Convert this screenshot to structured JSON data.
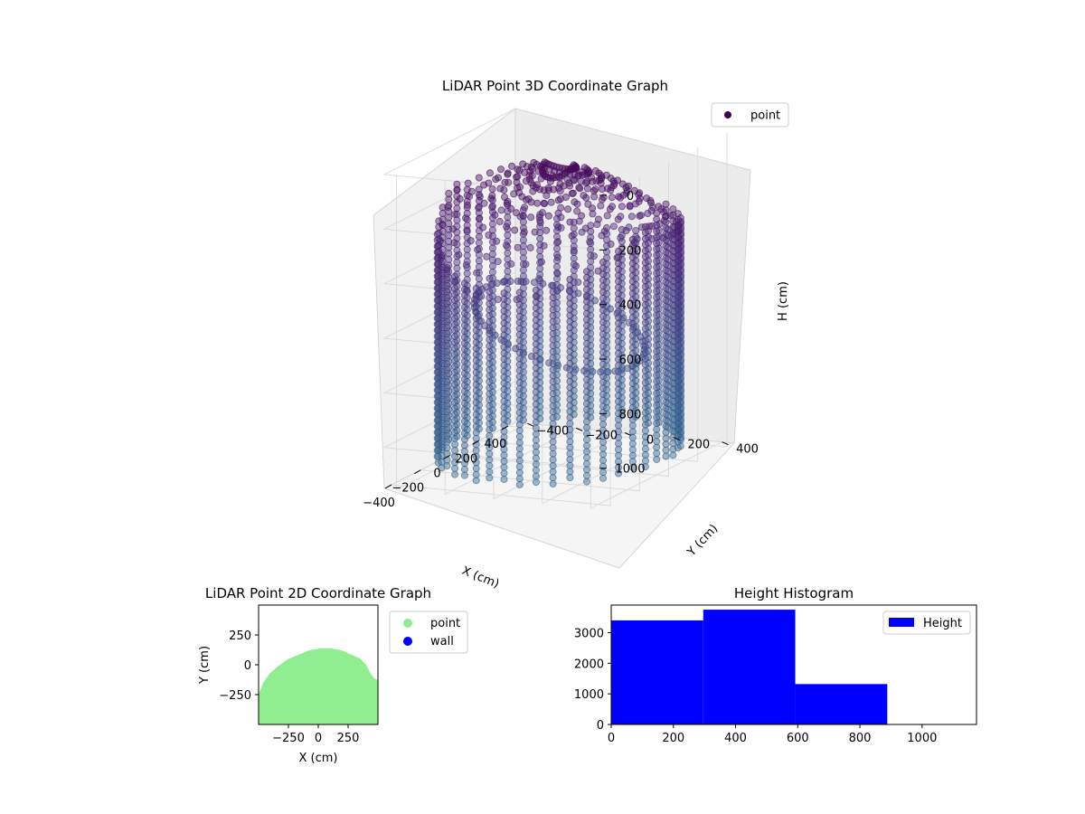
{
  "chart_data": [
    {
      "type": "scatter",
      "projection": "3d",
      "title": "LiDAR Point 3D Coordinate Graph",
      "xlabel": "X (cm)",
      "ylabel": "Y (cm)",
      "zlabel": "H (cm)",
      "xlim": [
        -450,
        450
      ],
      "ylim": [
        -450,
        450
      ],
      "zlim": [
        1150,
        0
      ],
      "xticks": [
        -400,
        -200,
        0,
        200,
        400
      ],
      "yticks": [
        -400,
        -200,
        0,
        200,
        400
      ],
      "zticks": [
        0,
        200,
        400,
        600,
        800,
        1000
      ],
      "grid": true,
      "legend": "top-right",
      "series": [
        {
          "name": "point",
          "color": "#440154",
          "colormap": "viridis",
          "shape": "dome-shaped wall of the room seen from below",
          "wall_radius": 430,
          "dome_height_range": [
            0,
            1150
          ],
          "base_height": 1100,
          "column_step": 22
        }
      ]
    },
    {
      "type": "scatter",
      "title": "LiDAR Point 2D Coordinate Graph",
      "xlabel": "X (cm)",
      "ylabel": "Y (cm)",
      "xlim": [
        -500,
        500
      ],
      "ylim": [
        -500,
        500
      ],
      "xticks": [
        -250,
        0,
        250
      ],
      "yticks": [
        -250,
        0,
        250
      ],
      "legend": "outside-right",
      "series": [
        {
          "name": "point",
          "color": "#90ee90",
          "region": "half-disc, y from -500 to ~130"
        },
        {
          "name": "wall",
          "color": "#0000ff",
          "region": ""
        }
      ]
    },
    {
      "type": "bar",
      "histogram": true,
      "title": "Height Histogram",
      "xlabel": "",
      "ylabel": "",
      "xlim": [
        0,
        1175
      ],
      "ylim": [
        0,
        3900
      ],
      "xticks": [
        0,
        200,
        400,
        600,
        800,
        1000
      ],
      "yticks": [
        0,
        1000,
        2000,
        3000
      ],
      "legend": "top-right",
      "bins": [
        {
          "start": 0,
          "end": 296,
          "value": 3400
        },
        {
          "start": 296,
          "end": 592,
          "value": 3750
        },
        {
          "start": 592,
          "end": 888,
          "value": 1320
        },
        {
          "start": 888,
          "end": 1175,
          "value": 0
        }
      ],
      "series": [
        {
          "name": "Height",
          "color": "#0000ff"
        }
      ]
    }
  ]
}
